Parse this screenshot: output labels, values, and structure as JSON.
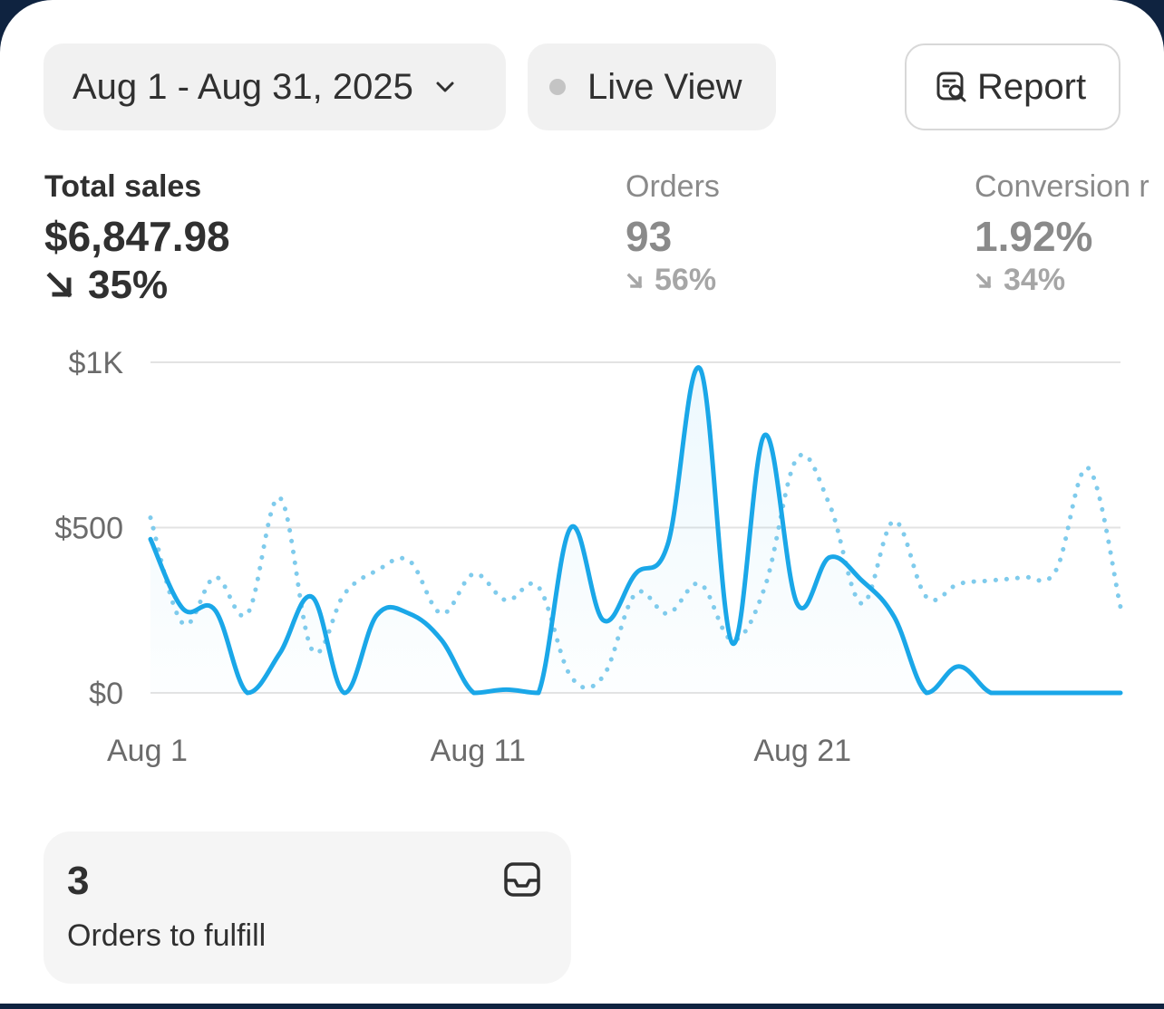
{
  "header": {
    "date_range": "Aug 1 - Aug 31, 2025",
    "live_view": "Live View",
    "report": "Report"
  },
  "metrics": {
    "total_sales": {
      "label": "Total sales",
      "value": "$6,847.98",
      "change": "35%"
    },
    "orders": {
      "label": "Orders",
      "value": "93",
      "change": "56%"
    },
    "conversion": {
      "label": "Conversion r",
      "value": "1.92%",
      "change": "34%"
    }
  },
  "chart_data": {
    "type": "line",
    "title": "",
    "xlabel": "",
    "ylabel": "",
    "ylim": [
      0,
      1000
    ],
    "y_ticks": [
      "$0",
      "$500",
      "$1K"
    ],
    "y_tick_values": [
      0,
      500,
      1000
    ],
    "x_tick_labels": [
      "Aug 1",
      "Aug 11",
      "Aug 21"
    ],
    "x_tick_days": [
      1,
      11,
      21
    ],
    "x": [
      1,
      2,
      3,
      4,
      5,
      6,
      7,
      8,
      9,
      10,
      11,
      12,
      13,
      14,
      15,
      16,
      17,
      18,
      19,
      20,
      21,
      22,
      23,
      24,
      25,
      26,
      27,
      28,
      29,
      30,
      31
    ],
    "grid": true,
    "legend": "none",
    "series": [
      {
        "style": "solid",
        "color": "#1aa7e8",
        "values": [
          465,
          255,
          250,
          0,
          120,
          290,
          0,
          235,
          240,
          160,
          0,
          10,
          0,
          500,
          220,
          360,
          450,
          980,
          150,
          780,
          270,
          410,
          340,
          230,
          0,
          80,
          0,
          0,
          0,
          0,
          0
        ]
      },
      {
        "style": "dotted",
        "color": "#7fcbec",
        "values": [
          530,
          210,
          350,
          240,
          590,
          130,
          300,
          370,
          400,
          240,
          360,
          280,
          320,
          50,
          50,
          300,
          240,
          330,
          160,
          320,
          710,
          570,
          270,
          520,
          290,
          330,
          340,
          350,
          370,
          680,
          260
        ]
      }
    ]
  },
  "fulfill": {
    "count": "3",
    "label": "Orders to fulfill"
  },
  "colors": {
    "accent": "#1aa7e8",
    "accent_light": "#7fcbec",
    "grid": "#e3e3e3"
  },
  "icons": {
    "date": "chevron-down-icon",
    "live": "live-dot-icon",
    "report": "report-search-icon",
    "down": "arrow-down-right-icon",
    "fulfill": "inbox-icon"
  }
}
